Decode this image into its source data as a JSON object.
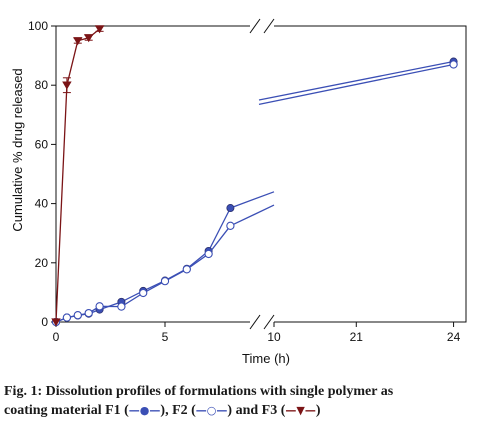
{
  "chart_data": {
    "type": "line",
    "ylabel": "Cumulative % drug released",
    "xlabel": "Time (h)",
    "ylim": [
      0,
      100
    ],
    "y_ticks": [
      0,
      20,
      40,
      60,
      80,
      100
    ],
    "x_axis_segments": [
      {
        "range": [
          0,
          10
        ],
        "ticks": [
          0,
          5,
          10
        ]
      },
      {
        "range": [
          18,
          25
        ],
        "ticks": [
          21,
          24
        ]
      }
    ],
    "axis_break": "between 10 and 18 h",
    "grid": false,
    "series": [
      {
        "name": "F1",
        "marker": "filled-circle",
        "color": "#3b4fb5",
        "x": [
          0,
          0.5,
          1,
          1.5,
          2,
          3,
          4,
          5,
          6,
          7,
          8
        ],
        "y": [
          0,
          1.5,
          2.2,
          2.8,
          4.2,
          6.8,
          10.5,
          14,
          18,
          24,
          38.5
        ],
        "trend_to_break": [
          [
            8,
            38.5
          ],
          [
            10,
            44
          ]
        ],
        "after_break": [
          [
            18,
            75
          ],
          [
            24,
            88
          ]
        ]
      },
      {
        "name": "F2",
        "marker": "open-circle",
        "color": "#3b4fb5",
        "x": [
          0,
          0.5,
          1,
          1.5,
          2,
          3,
          4,
          5,
          6,
          7,
          8
        ],
        "y": [
          0,
          1.5,
          2.3,
          3,
          5.3,
          5.2,
          9.8,
          13.8,
          17.8,
          23,
          32.5
        ],
        "trend_to_break": [
          [
            8,
            32.5
          ],
          [
            10,
            39.5
          ]
        ],
        "after_break": [
          [
            18,
            73.5
          ],
          [
            24,
            87
          ]
        ]
      },
      {
        "name": "F3",
        "marker": "filled-triangle-down",
        "color": "#7b1416",
        "x": [
          0,
          0.5,
          1,
          1.5,
          2
        ],
        "y": [
          0,
          80,
          95,
          96,
          99
        ],
        "error": [
          0,
          2.5,
          0.8,
          0.8,
          0.8
        ]
      }
    ]
  },
  "caption": {
    "text_1": "Fig. 1: Dissolution profiles of formulations with single polymer as",
    "text_2": "coating material F1 (",
    "sep_1": "), F2 (",
    "sep_2": ") and F3 (",
    "end": ")",
    "f1_marker": "—●—",
    "f2_marker": "—○—",
    "f3_marker": "—▼—"
  }
}
